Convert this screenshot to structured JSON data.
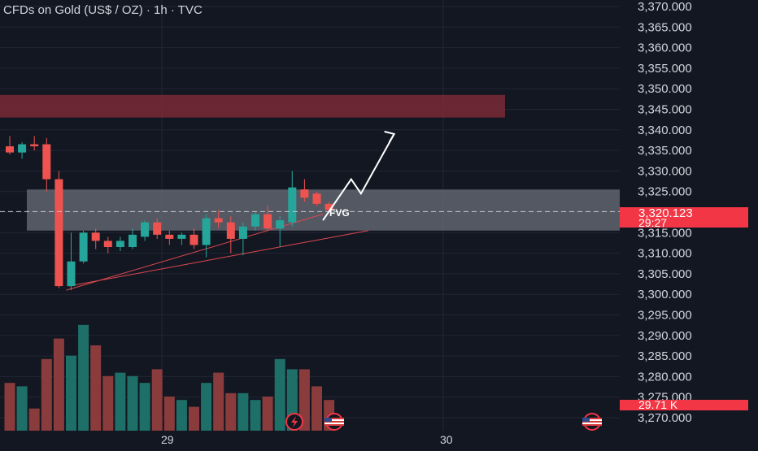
{
  "header": {
    "title": "CFDs on Gold (US$ / OZ) · 1h · TVC"
  },
  "colors": {
    "background": "#131722",
    "grid": "#232733",
    "up": "#26a69a",
    "down": "#ef5350",
    "up_volume": "#1f6f69",
    "down_volume": "#8a3b3b",
    "resistance_zone": "#7a2a36",
    "fvg_zone": "#6b6f7a",
    "axis_text": "#d1d4dc",
    "price_tag": "#f23645"
  },
  "price_axis": {
    "ticks": [
      "3,370.000",
      "3,365.000",
      "3,360.000",
      "3,355.000",
      "3,350.000",
      "3,345.000",
      "3,340.000",
      "3,335.000",
      "3,330.000",
      "3,325.000",
      "3,320.000",
      "3,315.000",
      "3,310.000",
      "3,305.000",
      "3,300.000",
      "3,295.000",
      "3,290.000",
      "3,285.000",
      "3,280.000",
      "3,275.000",
      "3,270.000"
    ],
    "current_price": "3,320.123",
    "countdown": "29:27",
    "volume_label": "29.71 K"
  },
  "time_axis": {
    "labels": [
      "29",
      "30"
    ]
  },
  "annotations": {
    "fvg_label": "FVG"
  },
  "chart_data": {
    "type": "candlestick",
    "title": "CFDs on Gold (US$ / OZ) · 1h · TVC",
    "ylim": [
      3268,
      3372
    ],
    "current_price": 3320.123,
    "candles": [
      {
        "o": 3336.0,
        "h": 3338.5,
        "l": 3334.0,
        "c": 3334.5
      },
      {
        "o": 3334.5,
        "h": 3337.0,
        "l": 3333.0,
        "c": 3336.5
      },
      {
        "o": 3336.5,
        "h": 3338.5,
        "l": 3335.0,
        "c": 3336.0
      },
      {
        "o": 3336.5,
        "h": 3338.0,
        "l": 3325.0,
        "c": 3328.0
      },
      {
        "o": 3328.0,
        "h": 3330.0,
        "l": 3301.5,
        "c": 3302.0
      },
      {
        "o": 3302.0,
        "h": 3315.0,
        "l": 3301.0,
        "c": 3308.0
      },
      {
        "o": 3308.0,
        "h": 3315.5,
        "l": 3307.5,
        "c": 3315.0
      },
      {
        "o": 3315.0,
        "h": 3316.0,
        "l": 3311.0,
        "c": 3313.0
      },
      {
        "o": 3313.0,
        "h": 3314.0,
        "l": 3310.0,
        "c": 3311.5
      },
      {
        "o": 3311.5,
        "h": 3314.0,
        "l": 3310.5,
        "c": 3313.0
      },
      {
        "o": 3311.5,
        "h": 3316.0,
        "l": 3311.0,
        "c": 3314.5
      },
      {
        "o": 3314.0,
        "h": 3318.0,
        "l": 3313.0,
        "c": 3317.5
      },
      {
        "o": 3317.5,
        "h": 3318.5,
        "l": 3313.5,
        "c": 3314.5
      },
      {
        "o": 3314.5,
        "h": 3315.5,
        "l": 3312.0,
        "c": 3313.5
      },
      {
        "o": 3313.5,
        "h": 3315.0,
        "l": 3312.0,
        "c": 3314.5
      },
      {
        "o": 3314.5,
        "h": 3316.0,
        "l": 3311.0,
        "c": 3312.0
      },
      {
        "o": 3312.0,
        "h": 3319.5,
        "l": 3309.0,
        "c": 3318.5
      },
      {
        "o": 3318.5,
        "h": 3320.5,
        "l": 3316.0,
        "c": 3317.5
      },
      {
        "o": 3317.5,
        "h": 3319.0,
        "l": 3310.0,
        "c": 3313.5
      },
      {
        "o": 3313.5,
        "h": 3317.5,
        "l": 3309.5,
        "c": 3316.5
      },
      {
        "o": 3316.5,
        "h": 3320.0,
        "l": 3315.5,
        "c": 3319.5
      },
      {
        "o": 3319.5,
        "h": 3321.5,
        "l": 3315.5,
        "c": 3316.0
      },
      {
        "o": 3316.0,
        "h": 3319.0,
        "l": 3311.5,
        "c": 3318.0
      },
      {
        "o": 3317.5,
        "h": 3330.0,
        "l": 3316.5,
        "c": 3326.0
      },
      {
        "o": 3325.5,
        "h": 3328.0,
        "l": 3322.5,
        "c": 3323.5
      },
      {
        "o": 3324.5,
        "h": 3325.0,
        "l": 3321.5,
        "c": 3322.0
      },
      {
        "o": 3322.0,
        "h": 3322.5,
        "l": 3320.0,
        "c": 3320.5
      }
    ],
    "volume": [
      14,
      13,
      6.5,
      21,
      27,
      22,
      31,
      25,
      16,
      17,
      16,
      14,
      18,
      10,
      9,
      7,
      14,
      17,
      11,
      11,
      9,
      10,
      21,
      18,
      18,
      13,
      9
    ],
    "zones": [
      {
        "name": "resistance",
        "from": 3343.0,
        "to": 3348.5
      },
      {
        "name": "fvg",
        "from": 3315.5,
        "to": 3325.5
      }
    ],
    "trendlines": [
      {
        "from": [
          4.6,
          3301.0
        ],
        "to": [
          25.5,
          3319.5
        ]
      },
      {
        "from": [
          4.8,
          3302.0
        ],
        "to": [
          29.2,
          3315.5
        ]
      }
    ],
    "projection": [
      [
        25.5,
        3318.0
      ],
      [
        27.8,
        3328.0
      ],
      [
        28.6,
        3324.5
      ],
      [
        31.3,
        3339.0
      ]
    ],
    "grid": true
  }
}
